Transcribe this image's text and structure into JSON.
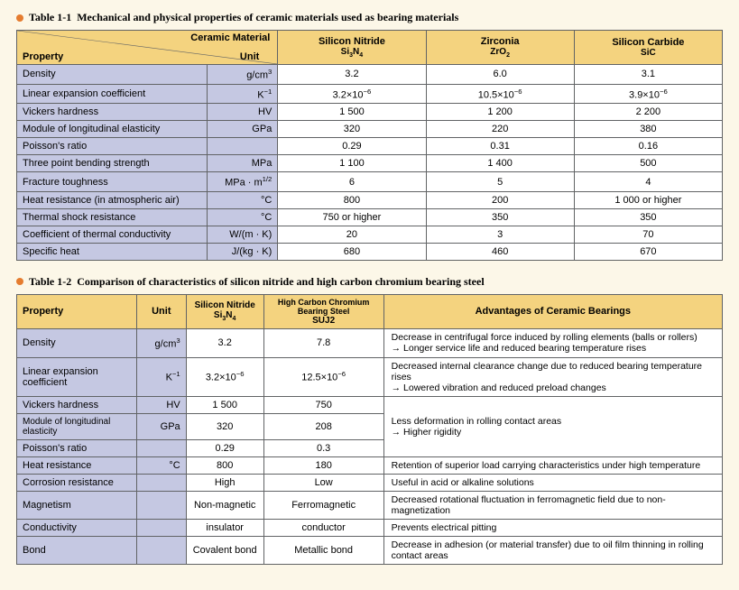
{
  "colors": {
    "page_bg": "#fcf7e8",
    "header_bg": "#f4d37f",
    "prop_bg": "#c5c8e2",
    "value_bg": "#ffffff",
    "border": "#616365",
    "bullet": "#e57c2f",
    "text": "#000000"
  },
  "table1": {
    "number": "Table 1-1",
    "title": "Mechanical and physical properties of ceramic materials used as bearing materials",
    "diag_top": "Ceramic Material",
    "diag_prop": "Property",
    "diag_unit": "Unit",
    "cols": [
      {
        "name": "Silicon Nitride",
        "formula_html": "Si<sub>3</sub>N<sub>4</sub>"
      },
      {
        "name": "Zirconia",
        "formula_html": "ZrO<sub>2</sub>"
      },
      {
        "name": "Silicon Carbide",
        "formula_html": "SiC"
      }
    ],
    "rows": [
      {
        "prop": "Density",
        "unit_html": "g/cm<sup>3</sup>",
        "v": [
          "3.2",
          "6.0",
          "3.1"
        ]
      },
      {
        "prop": "Linear expansion coefficient",
        "unit_html": "K<sup>&minus;1</sup>",
        "v": [
          "3.2&times;10<sup>&minus;6</sup>",
          "10.5&times;10<sup>&minus;6</sup>",
          "3.9&times;10<sup>&minus;6</sup>"
        ]
      },
      {
        "prop": "Vickers hardness",
        "unit_html": "HV",
        "v": [
          "1 500",
          "1 200",
          "2 200"
        ]
      },
      {
        "prop": "Module of longitudinal elasticity",
        "unit_html": "GPa",
        "v": [
          "320",
          "220",
          "380"
        ]
      },
      {
        "prop": "Poisson's ratio",
        "unit_html": "",
        "v": [
          "0.29",
          "0.31",
          "0.16"
        ]
      },
      {
        "prop": "Three point bending strength",
        "unit_html": "MPa",
        "v": [
          "1 100",
          "1 400",
          "500"
        ]
      },
      {
        "prop": "Fracture toughness",
        "unit_html": "MPa &middot; m<sup>1/2</sup>",
        "v": [
          "6",
          "5",
          "4"
        ]
      },
      {
        "prop": "Heat resistance (in atmospheric air)",
        "unit_html": "&deg;C",
        "v": [
          "800",
          "200",
          "1 000 or higher"
        ]
      },
      {
        "prop": "Thermal shock resistance",
        "unit_html": "&deg;C",
        "v": [
          "750 or higher",
          "350",
          "350"
        ]
      },
      {
        "prop": "Coefficient of thermal conductivity",
        "unit_html": "W/(m &middot; K)",
        "v": [
          "20",
          "3",
          "70"
        ]
      },
      {
        "prop": "Specific heat",
        "unit_html": "J/(kg &middot; K)",
        "v": [
          "680",
          "460",
          "670"
        ]
      }
    ],
    "col_widths_pct": [
      27,
      10,
      21,
      21,
      21
    ]
  },
  "table2": {
    "number": "Table 1-2",
    "title": "Comparison of characteristics of silicon nitride and high carbon chromium bearing steel",
    "h_property": "Property",
    "h_unit": "Unit",
    "h_sin": "Silicon Nitride",
    "h_sin_sub_html": "Si<sub>3</sub>N<sub>4</sub>",
    "h_steel": "High Carbon Chromium Bearing Steel",
    "h_steel_sub": "SUJ2",
    "h_adv": "Advantages of Ceramic Bearings",
    "rows": [
      {
        "prop": "Density",
        "unit_html": "g/cm<sup>3</sup>",
        "v1": "3.2",
        "v2": "7.8",
        "adv": "Decrease in centrifugal force induced by rolling elements (balls or rollers)<br>&rarr; Longer service life and reduced bearing temperature rises",
        "tall": true
      },
      {
        "prop": "Linear expansion coefficient",
        "unit_html": "K<sup>&minus;1</sup>",
        "v1": "3.2&times;10<sup>&minus;6</sup>",
        "v2": "12.5&times;10<sup>&minus;6</sup>",
        "adv": "Decreased internal clearance change due to reduced bearing temperature rises<br>&rarr; Lowered vibration and reduced preload changes",
        "tall": true
      },
      {
        "prop": "Vickers hardness",
        "unit_html": "HV",
        "v1": "1 500",
        "v2": "750",
        "adv_span": 3,
        "adv": "Less deformation in rolling contact areas<br>&rarr; Higher rigidity"
      },
      {
        "prop": "Module of longitudinal elasticity",
        "prop_small": true,
        "unit_html": "GPa",
        "v1": "320",
        "v2": "208"
      },
      {
        "prop": "Poisson's ratio",
        "unit_html": "",
        "v1": "0.29",
        "v2": "0.3"
      },
      {
        "prop": "Heat resistance",
        "unit_html": "&deg;C",
        "v1": "800",
        "v2": "180",
        "adv": "Retention of superior load carrying characteristics under high temperature"
      },
      {
        "prop": "Corrosion resistance",
        "unit_html": "",
        "v1": "High",
        "v2": "Low",
        "adv": "Useful in acid or alkaline solutions"
      },
      {
        "prop": "Magnetism",
        "unit_html": "",
        "v1": "Non-magnetic",
        "v2": "Ferromagnetic",
        "adv": "Decreased rotational fluctuation in ferromagnetic field due to non-magnetization"
      },
      {
        "prop": "Conductivity",
        "unit_html": "",
        "v1": "insulator",
        "v2": "conductor",
        "adv": "Prevents electrical pitting"
      },
      {
        "prop": "Bond",
        "unit_html": "",
        "v1": "Covalent bond",
        "v2": "Metallic bond",
        "adv": "Decrease in adhesion (or material transfer) due to oil film thinning in rolling contact areas"
      }
    ],
    "col_widths_pct": [
      17,
      7,
      11,
      17,
      48
    ]
  }
}
